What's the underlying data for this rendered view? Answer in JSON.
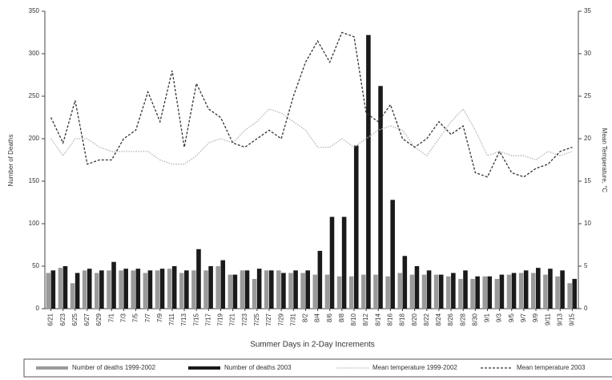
{
  "chart_data": {
    "type": "bar-line",
    "ylabel": "Number of Deaths",
    "y2label": "Mean Temperature, °C",
    "xlabel": "Summer Days in 2-Day Increments",
    "categories": [
      "6/21",
      "6/23",
      "6/25",
      "6/27",
      "6/29",
      "7/1",
      "7/3",
      "7/5",
      "7/7",
      "7/9",
      "7/11",
      "7/13",
      "7/15",
      "7/17",
      "7/19",
      "7/21",
      "7/23",
      "7/25",
      "7/27",
      "7/29",
      "7/31",
      "8/2",
      "8/4",
      "8/6",
      "8/8",
      "8/10",
      "8/12",
      "8/14",
      "8/16",
      "8/18",
      "8/20",
      "8/22",
      "8/24",
      "8/26",
      "8/28",
      "8/30",
      "9/1",
      "9/3",
      "9/5",
      "9/7",
      "9/9",
      "9/11",
      "9/13",
      "9/15"
    ],
    "ylim": [
      0,
      350
    ],
    "yticks": [
      0,
      50,
      100,
      150,
      200,
      250,
      300,
      350
    ],
    "y2lim": [
      0,
      35
    ],
    "y2ticks": [
      0,
      5,
      10,
      15,
      20,
      25,
      30,
      35
    ],
    "legend": "bottom",
    "series": [
      {
        "name": "Number of deaths 1999-2002",
        "kind": "bar",
        "color": "#9a9a9a",
        "values": [
          42,
          48,
          30,
          45,
          42,
          45,
          45,
          45,
          42,
          45,
          47,
          42,
          45,
          45,
          50,
          40,
          45,
          35,
          45,
          45,
          42,
          42,
          40,
          40,
          38,
          38,
          40,
          40,
          38,
          42,
          40,
          40,
          40,
          38,
          35,
          35,
          38,
          35,
          40,
          42,
          42,
          40,
          38,
          30
        ]
      },
      {
        "name": "Number of deaths 2003",
        "kind": "bar",
        "color": "#1a1a1a",
        "values": [
          45,
          50,
          42,
          47,
          45,
          55,
          47,
          47,
          45,
          47,
          50,
          45,
          70,
          50,
          57,
          40,
          45,
          47,
          45,
          42,
          45,
          45,
          68,
          108,
          108,
          192,
          322,
          262,
          128,
          62,
          50,
          45,
          40,
          42,
          45,
          38,
          38,
          40,
          42,
          45,
          48,
          47,
          45,
          35
        ]
      },
      {
        "name": "Mean temperature 1999-2002",
        "kind": "line",
        "axis": "y2",
        "color": "#b5b5b5",
        "values": [
          20,
          18,
          20,
          20,
          19,
          18.5,
          18.5,
          18.5,
          18.5,
          17.5,
          17,
          17,
          18,
          19.5,
          20,
          19.5,
          21,
          22,
          23.5,
          23,
          22,
          21,
          19,
          19,
          20,
          19,
          20,
          21,
          21.5,
          21,
          19,
          18,
          20,
          22,
          23.5,
          21,
          18,
          18.5,
          18,
          18,
          17.5,
          18.5,
          18,
          18.5
        ]
      },
      {
        "name": "Mean temperature 2003",
        "kind": "line",
        "axis": "y2",
        "color": "#333333",
        "values": [
          22.5,
          19.5,
          24.5,
          17,
          17.5,
          17.5,
          20,
          21,
          25.5,
          22,
          28,
          19,
          26.5,
          23.5,
          22.5,
          19.5,
          19,
          20,
          21,
          20,
          25,
          29,
          31.5,
          29,
          32.5,
          32,
          23,
          22,
          24,
          20,
          19,
          20,
          22,
          20.5,
          21.5,
          16,
          15.5,
          18.5,
          16,
          15.5,
          16.5,
          17,
          18.5,
          19
        ]
      }
    ]
  }
}
